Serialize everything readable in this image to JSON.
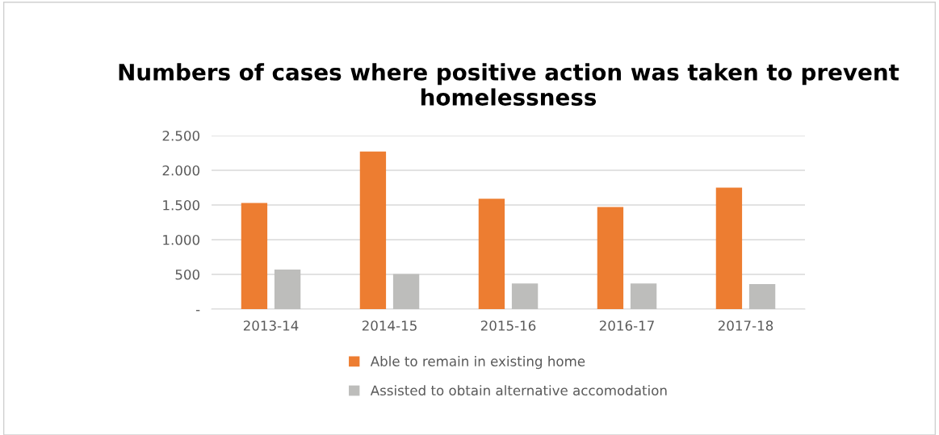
{
  "chart_data": {
    "type": "bar",
    "title": "Numbers of cases where positive action was taken to prevent homelessness",
    "categories": [
      "2013-14",
      "2014-15",
      "2015-16",
      "2016-17",
      "2017-18"
    ],
    "series": [
      {
        "name": "Able to remain in existing home",
        "color": "#ed7d31",
        "values": [
          1530,
          2270,
          1590,
          1470,
          1750
        ]
      },
      {
        "name": "Assisted to obtain alternative accomodation",
        "color": "#bdbdbb",
        "values": [
          570,
          505,
          370,
          370,
          360
        ]
      }
    ],
    "ylim": [
      0,
      2500
    ],
    "yticks": [
      {
        "value": 0,
        "label": "-"
      },
      {
        "value": 500,
        "label": "500"
      },
      {
        "value": 1000,
        "label": "1.000"
      },
      {
        "value": 1500,
        "label": "1.500"
      },
      {
        "value": 2000,
        "label": "2.000"
      },
      {
        "value": 2500,
        "label": "2.500"
      }
    ],
    "grid": "y",
    "legend": "bottom"
  }
}
